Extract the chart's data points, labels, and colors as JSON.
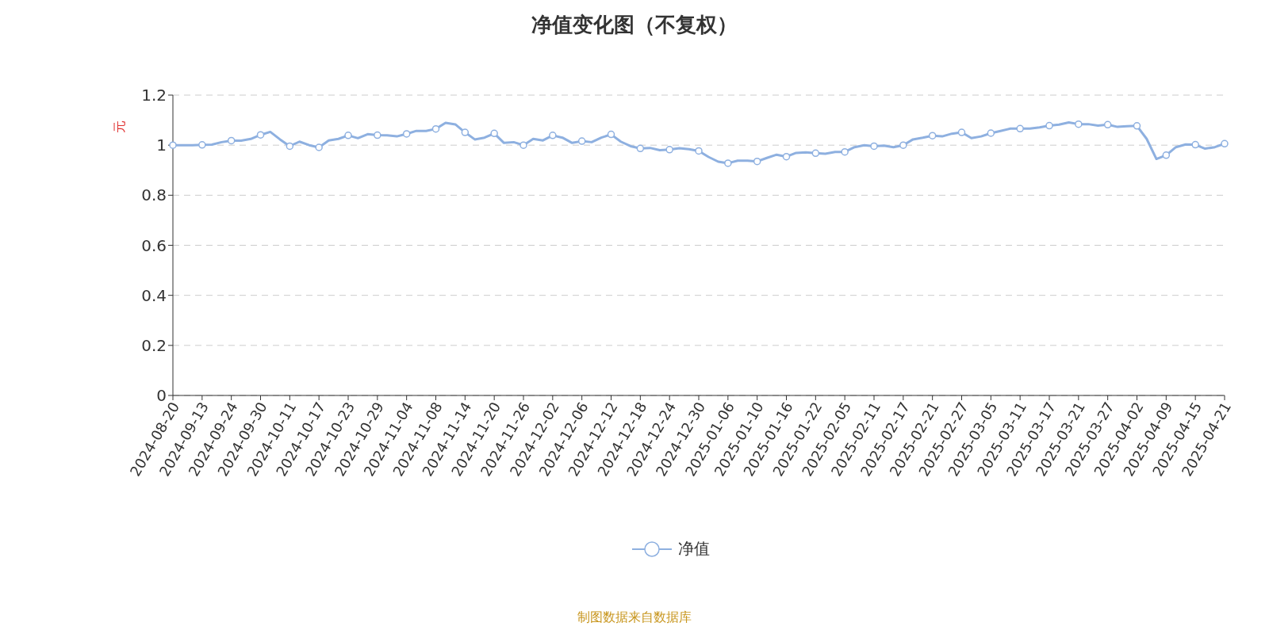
{
  "chart_data": {
    "type": "line",
    "title": "净值变化图（不复权）",
    "ylabel": "元",
    "annotations": [
      "制图数据来自数据库"
    ],
    "categories": [
      "2024-08-20",
      null,
      null,
      "2024-09-13",
      null,
      null,
      "2024-09-24",
      null,
      null,
      "2024-09-30",
      null,
      null,
      "2024-10-11",
      null,
      null,
      "2024-10-17",
      null,
      null,
      "2024-10-23",
      null,
      null,
      "2024-10-29",
      null,
      null,
      "2024-11-04",
      null,
      null,
      "2024-11-08",
      null,
      null,
      "2024-11-14",
      null,
      null,
      "2024-11-20",
      null,
      null,
      "2024-11-26",
      null,
      null,
      "2024-12-02",
      null,
      null,
      "2024-12-06",
      null,
      null,
      "2024-12-12",
      null,
      null,
      "2024-12-18",
      null,
      null,
      "2024-12-24",
      null,
      null,
      "2024-12-30",
      null,
      null,
      "2025-01-06",
      null,
      null,
      "2025-01-10",
      null,
      null,
      "2025-01-16",
      null,
      null,
      "2025-01-22",
      null,
      null,
      "2025-02-05",
      null,
      null,
      "2025-02-11",
      null,
      null,
      "2025-02-17",
      null,
      null,
      "2025-02-21",
      null,
      null,
      "2025-02-27",
      null,
      null,
      "2025-03-05",
      null,
      null,
      "2025-03-11",
      null,
      null,
      "2025-03-17",
      null,
      null,
      "2025-03-21",
      null,
      null,
      "2025-03-27",
      null,
      null,
      "2025-04-02",
      null,
      null,
      "2025-04-09",
      null,
      null,
      "2025-04-15",
      null,
      null,
      "2025-04-21"
    ],
    "series": [
      {
        "name": "净值",
        "color": "#8eb0e0",
        "values": [
          1.0,
          1.0,
          1.0,
          1.001,
          1.002,
          1.012,
          1.018,
          1.018,
          1.025,
          1.041,
          1.053,
          1.023,
          0.996,
          1.014,
          1.0,
          0.991,
          1.019,
          1.025,
          1.039,
          1.028,
          1.044,
          1.04,
          1.039,
          1.035,
          1.045,
          1.057,
          1.057,
          1.065,
          1.089,
          1.083,
          1.051,
          1.023,
          1.03,
          1.047,
          1.009,
          1.012,
          1.0,
          1.025,
          1.019,
          1.039,
          1.03,
          1.009,
          1.016,
          1.012,
          1.03,
          1.043,
          1.014,
          0.996,
          0.987,
          0.989,
          0.98,
          0.982,
          0.988,
          0.984,
          0.977,
          0.953,
          0.934,
          0.928,
          0.938,
          0.938,
          0.935,
          0.949,
          0.962,
          0.954,
          0.969,
          0.971,
          0.968,
          0.966,
          0.973,
          0.973,
          0.992,
          1.0,
          0.996,
          0.998,
          0.992,
          1.0,
          1.023,
          1.03,
          1.038,
          1.035,
          1.046,
          1.051,
          1.028,
          1.035,
          1.048,
          1.057,
          1.066,
          1.066,
          1.066,
          1.071,
          1.078,
          1.082,
          1.091,
          1.084,
          1.084,
          1.078,
          1.082,
          1.073,
          1.076,
          1.077,
          1.025,
          0.945,
          0.96,
          0.992,
          1.003,
          1.002,
          0.986,
          0.992,
          1.006
        ]
      },
      {
        "type": "scatter",
        "marker": "circle",
        "color": "#8eb0e0",
        "values": [
          1.0,
          null,
          null,
          1.001,
          null,
          null,
          1.018,
          null,
          null,
          1.041,
          null,
          null,
          0.996,
          null,
          null,
          0.991,
          null,
          null,
          1.039,
          null,
          null,
          1.04,
          null,
          null,
          1.045,
          null,
          null,
          1.065,
          null,
          null,
          1.051,
          null,
          null,
          1.047,
          null,
          null,
          1.0,
          null,
          null,
          1.039,
          null,
          null,
          1.016,
          null,
          null,
          1.043,
          null,
          null,
          0.987,
          null,
          null,
          0.982,
          null,
          null,
          0.977,
          null,
          null,
          0.928,
          null,
          null,
          0.935,
          null,
          null,
          0.954,
          null,
          null,
          0.968,
          null,
          null,
          0.973,
          null,
          null,
          0.996,
          null,
          null,
          1.0,
          null,
          null,
          1.038,
          null,
          null,
          1.051,
          null,
          null,
          1.048,
          null,
          null,
          1.066,
          null,
          null,
          1.078,
          null,
          null,
          1.084,
          null,
          null,
          1.082,
          null,
          null,
          1.077,
          null,
          null,
          0.96,
          null,
          null,
          1.002,
          null,
          null,
          1.006
        ]
      }
    ],
    "ylim": [
      0,
      1.2
    ],
    "yticks": [
      0,
      0.2,
      0.4,
      0.6,
      0.8,
      1,
      1.2
    ],
    "grid": "y",
    "legend": "bottom",
    "line_style": "solid"
  }
}
